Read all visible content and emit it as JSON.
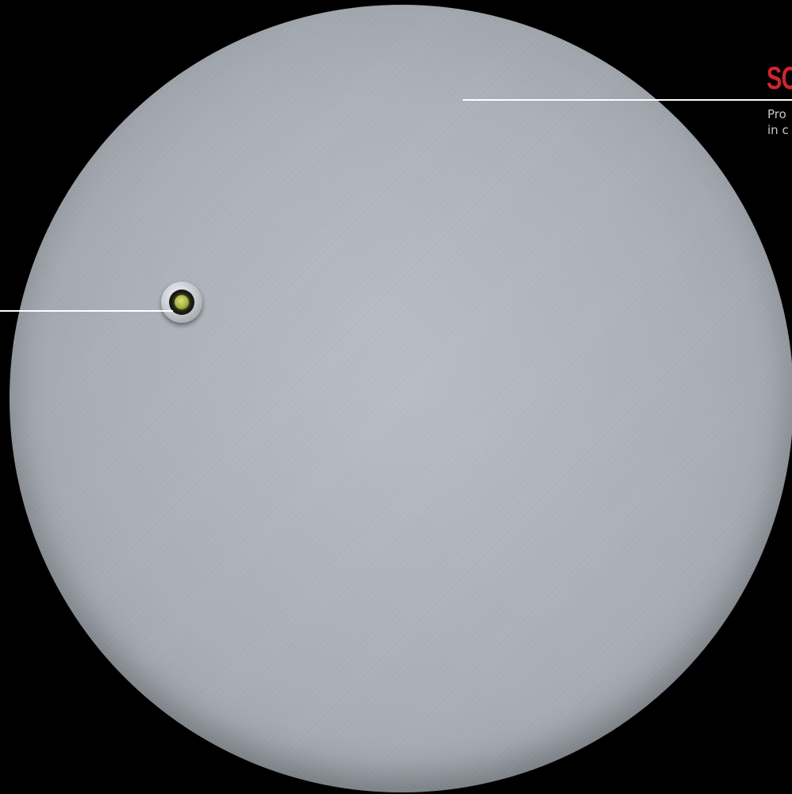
{
  "callout": {
    "title": "SO",
    "text_line1": "Pro",
    "text_line2": "in c"
  },
  "colors": {
    "background": "#000000",
    "accent_title": "#d0242d",
    "device_body": "#acb2ba",
    "led": "#b7bf4a"
  },
  "icons": {
    "led": "indicator-led-icon"
  }
}
